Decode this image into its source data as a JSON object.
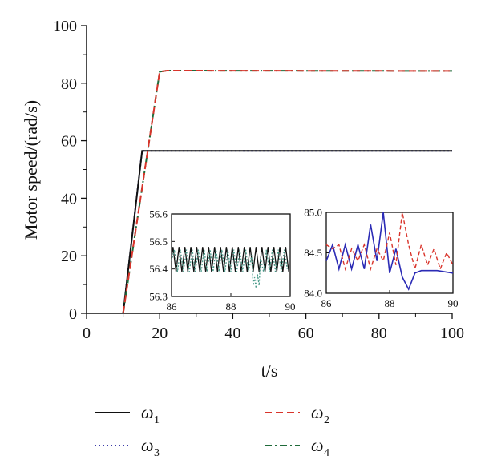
{
  "chart_data": [
    {
      "type": "line",
      "xlabel": "t/s",
      "ylabel": "Motor speed/(rad/s)",
      "xlim": [
        0,
        100
      ],
      "ylim": [
        0,
        100
      ],
      "xticks": [
        "0",
        "20",
        "40",
        "60",
        "80",
        "100"
      ],
      "yticks": [
        "0",
        "20",
        "40",
        "60",
        "80",
        "100"
      ],
      "series": [
        {
          "name": "ω1",
          "x": [
            10,
            15.2,
            16,
            100
          ],
          "y": [
            0,
            56.5,
            56.5,
            56.5
          ]
        },
        {
          "name": "ω2",
          "x": [
            10,
            20,
            22,
            100
          ],
          "y": [
            0,
            84,
            84.4,
            84.3
          ]
        },
        {
          "name": "ω3",
          "x": [
            10,
            15.2,
            16,
            100
          ],
          "y": [
            0,
            56.5,
            56.5,
            56.5
          ]
        },
        {
          "name": "ω4",
          "x": [
            10,
            20,
            22,
            100
          ],
          "y": [
            0,
            84,
            84.4,
            84.3
          ]
        }
      ],
      "grid": false,
      "legend_position": "bottom"
    },
    {
      "type": "line",
      "title": "",
      "xlim": [
        86,
        90
      ],
      "ylim": [
        56.3,
        56.6
      ],
      "xticks": [
        "86",
        "88",
        "90"
      ],
      "yticks": [
        "56.3",
        "56.4",
        "56.5",
        "56.6"
      ],
      "series": [
        {
          "name": "ω1",
          "x": [
            86,
            86.05,
            86.15,
            86.25,
            86.35,
            86.45,
            86.55,
            86.65,
            86.75,
            86.85,
            86.95,
            87.05,
            87.15,
            87.25,
            87.35,
            87.45,
            87.55,
            87.65,
            87.75,
            87.85,
            87.95,
            88.05,
            88.15,
            88.25,
            88.35,
            88.45,
            88.55,
            88.65,
            88.75,
            88.85,
            88.95,
            89.05,
            89.15,
            89.25,
            89.35,
            89.45,
            89.55,
            89.65,
            89.75,
            89.85,
            89.95
          ],
          "y": [
            56.44,
            56.48,
            56.39,
            56.48,
            56.39,
            56.48,
            56.39,
            56.48,
            56.39,
            56.48,
            56.39,
            56.48,
            56.39,
            56.48,
            56.39,
            56.48,
            56.39,
            56.48,
            56.39,
            56.48,
            56.39,
            56.48,
            56.39,
            56.48,
            56.39,
            56.48,
            56.39,
            56.48,
            56.39,
            56.48,
            56.39,
            56.48,
            56.39,
            56.48,
            56.39,
            56.48,
            56.39,
            56.48,
            56.39,
            56.48,
            56.39
          ]
        },
        {
          "name": "ω3",
          "x": [
            86,
            86.1,
            86.2,
            86.3,
            86.4,
            86.5,
            86.6,
            86.7,
            86.8,
            86.9,
            87.0,
            87.1,
            87.2,
            87.3,
            87.4,
            87.5,
            87.6,
            87.7,
            87.8,
            87.9,
            88.0,
            88.1,
            88.2,
            88.3,
            88.4,
            88.5,
            88.6,
            88.7,
            88.75,
            88.8,
            88.85,
            88.9,
            88.95,
            89.0,
            89.1,
            89.2,
            89.3,
            89.4,
            89.5,
            89.6,
            89.7,
            89.8,
            89.9
          ],
          "y": [
            56.43,
            56.47,
            56.39,
            56.47,
            56.39,
            56.47,
            56.39,
            56.47,
            56.39,
            56.47,
            56.39,
            56.47,
            56.39,
            56.47,
            56.39,
            56.47,
            56.39,
            56.47,
            56.39,
            56.47,
            56.39,
            56.47,
            56.39,
            56.47,
            56.39,
            56.47,
            56.39,
            56.45,
            56.34,
            56.37,
            56.33,
            56.38,
            56.34,
            56.44,
            56.39,
            56.47,
            56.39,
            56.47,
            56.39,
            56.47,
            56.39,
            56.47,
            56.4
          ]
        }
      ]
    },
    {
      "type": "line",
      "title": "",
      "xlim": [
        86,
        90
      ],
      "ylim": [
        84.0,
        85.0
      ],
      "xticks": [
        "86",
        "88",
        "90"
      ],
      "yticks": [
        "84.0",
        "84.5",
        "85.0"
      ],
      "series": [
        {
          "name": "ω1",
          "x": [
            86,
            86.2,
            86.4,
            86.6,
            86.8,
            87.0,
            87.2,
            87.4,
            87.6,
            87.8,
            88.0,
            88.2,
            88.4,
            88.6,
            88.8,
            89.0,
            89.5,
            90
          ],
          "y": [
            84.4,
            84.6,
            84.3,
            84.6,
            84.3,
            84.6,
            84.3,
            84.85,
            84.4,
            85.0,
            84.25,
            84.55,
            84.2,
            84.05,
            84.25,
            84.28,
            84.28,
            84.25
          ]
        },
        {
          "name": "ω2",
          "x": [
            86,
            86.2,
            86.4,
            86.6,
            86.8,
            87.0,
            87.2,
            87.4,
            87.6,
            87.8,
            88.0,
            88.2,
            88.4,
            88.6,
            88.8,
            89.0,
            89.2,
            89.4,
            89.6,
            89.8,
            90
          ],
          "y": [
            84.6,
            84.55,
            84.6,
            84.3,
            84.55,
            84.4,
            84.6,
            84.3,
            84.55,
            84.4,
            84.75,
            84.35,
            85.0,
            84.6,
            84.3,
            84.6,
            84.35,
            84.55,
            84.3,
            84.5,
            84.35
          ]
        }
      ]
    }
  ],
  "legend": {
    "entries": [
      {
        "symbol": "ω",
        "sub": "1",
        "color": "#111111",
        "dash": "solid"
      },
      {
        "symbol": "ω",
        "sub": "2",
        "color": "#d9342b",
        "dash": "dash"
      },
      {
        "symbol": "ω",
        "sub": "3",
        "color": "#3a3aa8",
        "dash": "dot"
      },
      {
        "symbol": "ω",
        "sub": "4",
        "color": "#1f6b3a",
        "dash": "dashdot"
      }
    ]
  },
  "colors": {
    "w1": "#111111",
    "w2": "#d9342b",
    "w3": "#3a3aa8",
    "w4": "#1f6b3a",
    "inset_line": "#2b2bb5",
    "inset_teal": "#4a9a8a"
  }
}
